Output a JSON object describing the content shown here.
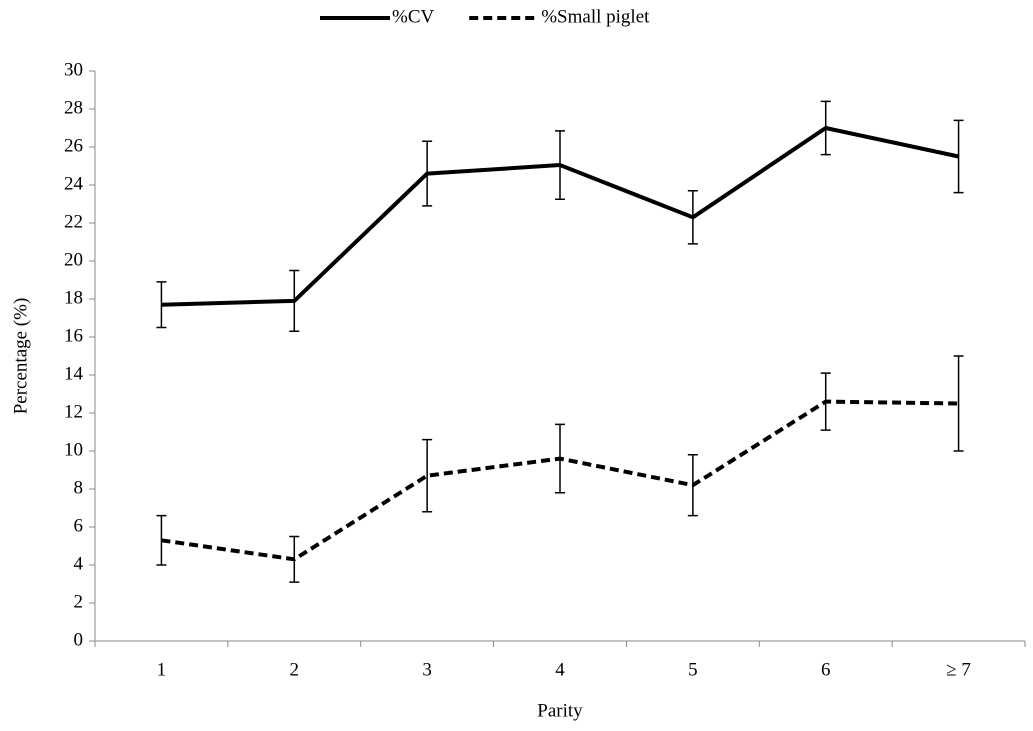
{
  "chart_data": {
    "type": "line",
    "x_label": "Parity",
    "y_label": "Percentage (%)",
    "categories": [
      "1",
      "2",
      "3",
      "4",
      "5",
      "6",
      "≥ 7"
    ],
    "series": [
      {
        "name": "%CV",
        "color": "#000000",
        "dash": "solid",
        "values": [
          17.7,
          17.9,
          24.6,
          25.05,
          22.3,
          27.0,
          25.5
        ],
        "errors": [
          1.2,
          1.6,
          1.7,
          1.8,
          1.4,
          1.4,
          1.9
        ]
      },
      {
        "name": "%Small piglet",
        "color": "#000000",
        "dash": "dashed",
        "values": [
          5.3,
          4.3,
          8.7,
          9.6,
          8.2,
          12.6,
          12.5
        ],
        "errors": [
          1.3,
          1.2,
          1.9,
          1.8,
          1.6,
          1.5,
          2.5
        ]
      }
    ],
    "ylim": [
      0,
      30
    ],
    "yticks": [
      0,
      2,
      4,
      6,
      8,
      10,
      12,
      14,
      16,
      18,
      20,
      22,
      24,
      26,
      28,
      30
    ],
    "grid": false,
    "legend": "top"
  }
}
